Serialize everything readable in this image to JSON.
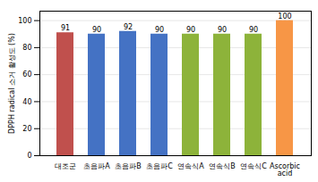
{
  "chart_data": {
    "type": "bar",
    "categories": [
      "대조군",
      "초음파A",
      "초음파B",
      "초음파C",
      "연속식A",
      "연속식B",
      "연속식C",
      "Ascorbic\nacid"
    ],
    "values": [
      91,
      90,
      92,
      90,
      90,
      90,
      90,
      100
    ],
    "colors": [
      "#c0504d",
      "#4472c4",
      "#4472c4",
      "#4472c4",
      "#8db33a",
      "#8db33a",
      "#8db33a",
      "#f79646"
    ],
    "ylabel": "DPPH radical 소거 활성도 (%)",
    "ylim": [
      0,
      107
    ],
    "yticks": [
      0,
      20,
      40,
      60,
      80,
      100
    ],
    "grid": true,
    "data_labels": true
  }
}
